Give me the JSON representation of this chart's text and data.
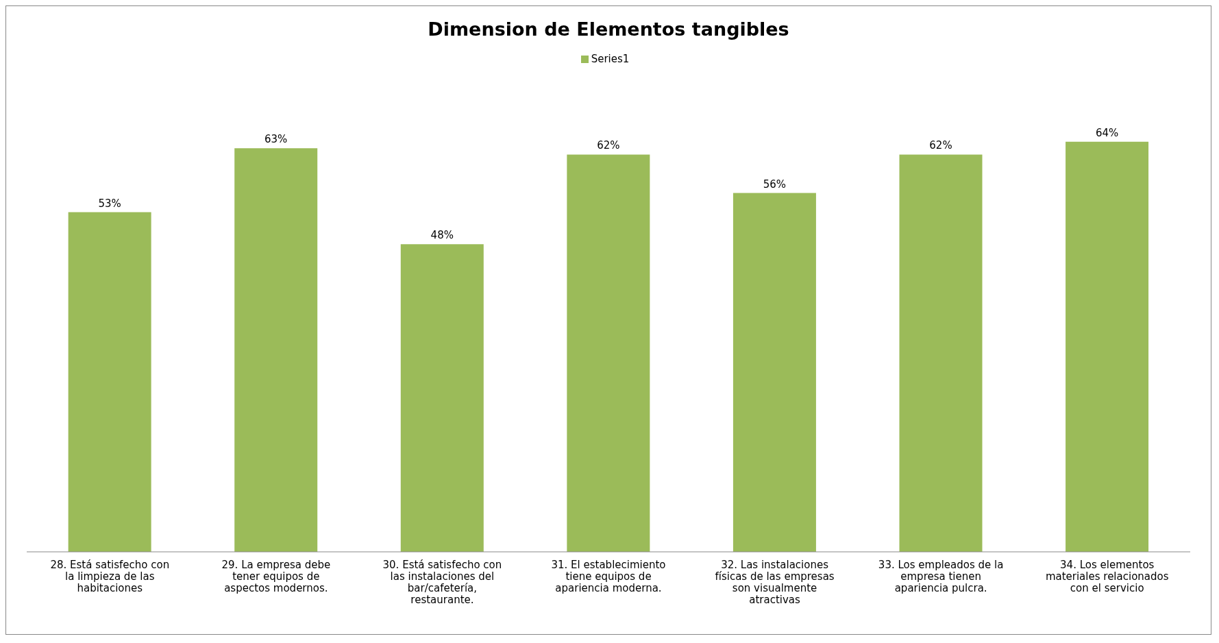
{
  "chart_data": {
    "type": "bar",
    "title": "Dimension de Elementos tangibles",
    "categories": [
      "28. Está satisfecho con la limpieza de las habitaciones",
      "29. La empresa debe tener equipos de aspectos modernos.",
      "30. Está satisfecho con las instalaciones del bar/cafetería, restaurante.",
      "31. El establecimiento tiene equipos de apariencia moderna.",
      "32. Las instalaciones físicas de las empresas son visualmente atractivas",
      "33. Los empleados de la empresa tienen apariencia pulcra.",
      "34. Los elementos materiales relacionados con el servicio"
    ],
    "series": [
      {
        "name": "Series1",
        "color": "#9bbb59",
        "values": [
          53,
          63,
          48,
          62,
          56,
          62,
          64
        ],
        "value_labels": [
          "53%",
          "63%",
          "48%",
          "62%",
          "56%",
          "62%",
          "64%"
        ]
      }
    ],
    "legend": "top",
    "grid": false
  }
}
